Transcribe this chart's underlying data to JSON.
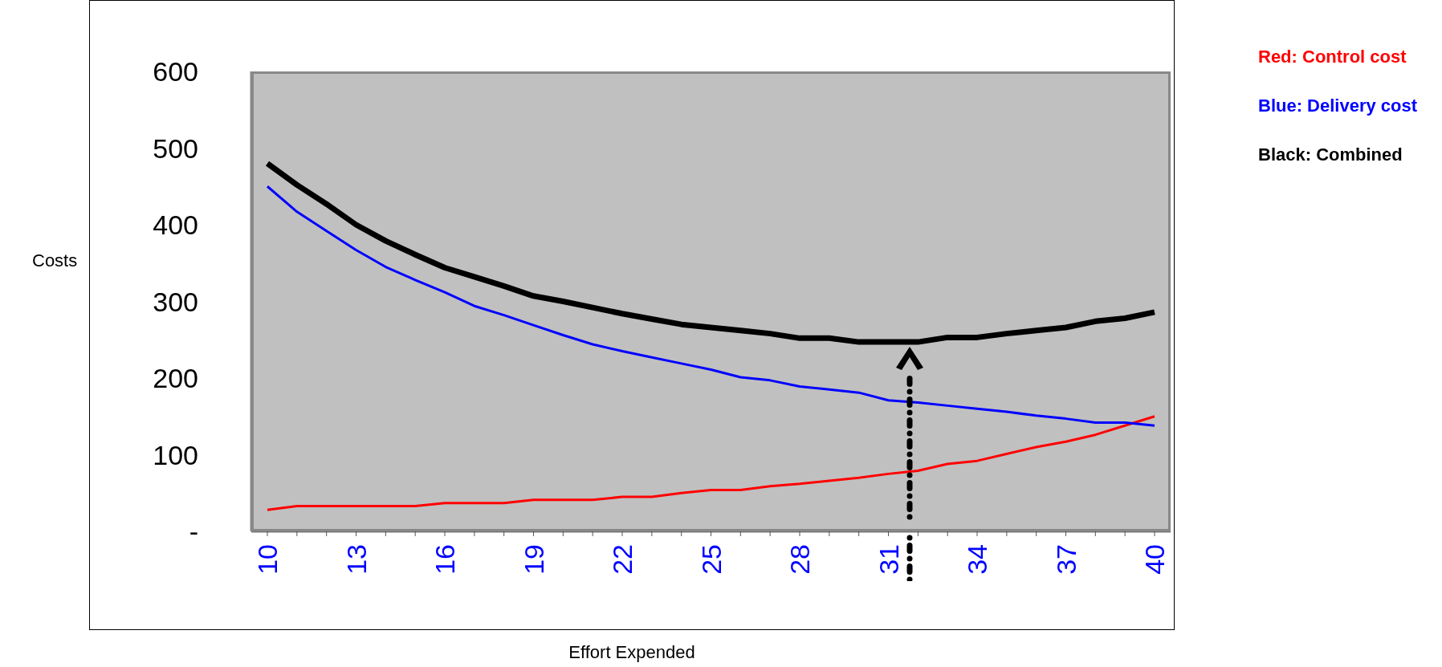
{
  "chart_data": {
    "type": "line",
    "xlabel": "Effort Expended",
    "ylabel": "Costs",
    "categories": [
      "10",
      null,
      null,
      "13",
      null,
      null,
      "16",
      null,
      null,
      "19",
      null,
      null,
      "22",
      null,
      null,
      "25",
      null,
      null,
      "28",
      null,
      null,
      "31",
      null,
      null,
      "34",
      null,
      null,
      "37",
      null,
      null,
      "40"
    ],
    "ylim": [
      0,
      600
    ],
    "yticks": [
      {
        "value": 0,
        "label": "-"
      },
      100,
      200,
      300,
      400,
      500,
      600
    ],
    "grid": false,
    "legend": "top right",
    "marker": "none",
    "series": [
      {
        "name": "Red: Control cost",
        "color": "#ff0000",
        "values": [
          28,
          33,
          33,
          33,
          33,
          33,
          37,
          37,
          37,
          41,
          41,
          41,
          45,
          45,
          50,
          54,
          54,
          59,
          62,
          66,
          70,
          75,
          79,
          88,
          92,
          101,
          110,
          117,
          126,
          138,
          150
        ]
      },
      {
        "name": "Blue: Delivery cost",
        "color": "#0000ff",
        "values": [
          450,
          417,
          392,
          367,
          345,
          328,
          312,
          294,
          282,
          269,
          256,
          244,
          235,
          227,
          219,
          211,
          201,
          197,
          189,
          185,
          181,
          171,
          168,
          164,
          160,
          156,
          151,
          147,
          142,
          142,
          138
        ]
      },
      {
        "name": "Black: Combined",
        "color": "#000000",
        "values": [
          480,
          452,
          427,
          400,
          379,
          361,
          344,
          332,
          320,
          307,
          300,
          292,
          284,
          277,
          270,
          266,
          262,
          258,
          252,
          252,
          247,
          247,
          247,
          253,
          253,
          258,
          262,
          266,
          274,
          278,
          286
        ]
      }
    ]
  }
}
